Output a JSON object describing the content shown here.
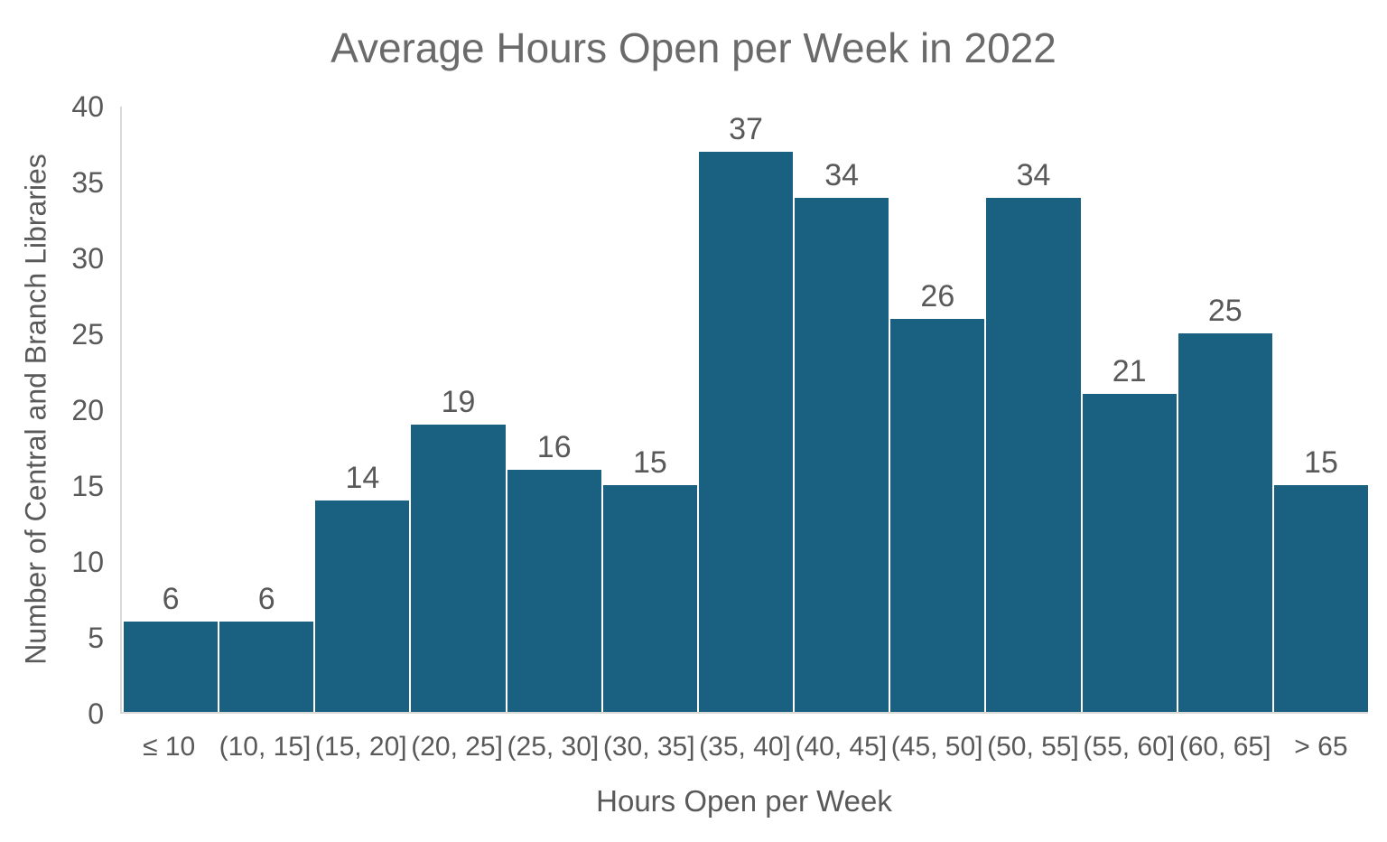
{
  "chart_data": {
    "type": "bar",
    "title": "Average Hours Open per Week in 2022",
    "xlabel": "Hours Open per Week",
    "ylabel": "Number of Central and Branch Libraries",
    "categories": [
      "≤ 10",
      "(10, 15]",
      "(15, 20]",
      "(20, 25]",
      "(25, 30]",
      "(30, 35]",
      "(35, 40]",
      "(40, 45]",
      "(45, 50]",
      "(50, 55]",
      "(55, 60]",
      "(60, 65]",
      "> 65"
    ],
    "values": [
      6,
      6,
      14,
      19,
      16,
      15,
      37,
      34,
      26,
      34,
      21,
      25,
      15
    ],
    "ylim": [
      0,
      40
    ],
    "yticks": [
      0,
      5,
      10,
      15,
      20,
      25,
      30,
      35,
      40
    ],
    "grid": false,
    "legend": "none",
    "data_labels": true,
    "bar_color": "#1A6181",
    "text_color": "#595959",
    "title_color": "#6A6A6A",
    "axis_line_color": "#D9D9D9"
  }
}
